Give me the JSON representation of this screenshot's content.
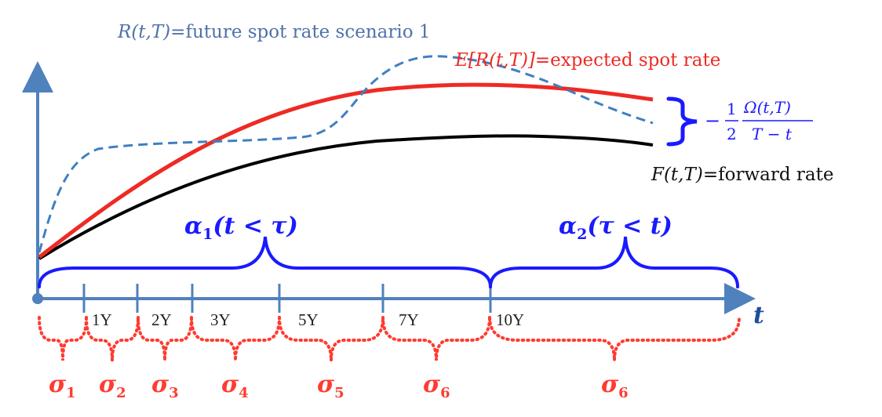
{
  "labels": {
    "future_spot_var": "R(t,T)",
    "future_spot_text": "=future spot rate scenario 1",
    "expected_var": "E[R(t,T)]",
    "expected_text": "=expected spot rate",
    "forward_var": "F(t,T)",
    "forward_text": "=forward rate",
    "convexity_sign": "−",
    "convexity_coef_num": "1",
    "convexity_coef_den": "2",
    "convexity_num": "Ω(t,T)",
    "convexity_den": "T − t",
    "alpha1_base": "α",
    "alpha1_sub": "1",
    "alpha1_cond": "(t < τ)",
    "alpha2_base": "α",
    "alpha2_sub": "2",
    "alpha2_cond": "(τ < t)",
    "t_axis": "t"
  },
  "ticks": [
    "1Y",
    "2Y",
    "3Y",
    "5Y",
    "7Y",
    "10Y"
  ],
  "sigmas": [
    {
      "base": "σ",
      "sub": "1"
    },
    {
      "base": "σ",
      "sub": "2"
    },
    {
      "base": "σ",
      "sub": "3"
    },
    {
      "base": "σ",
      "sub": "4"
    },
    {
      "base": "σ",
      "sub": "5"
    },
    {
      "base": "σ",
      "sub": "6"
    },
    {
      "base": "σ",
      "sub": "6"
    }
  ],
  "colors": {
    "axis": "#4f81bd",
    "future_spot": "#3f7fc2",
    "expected": "#ee2a24",
    "forward": "#000000",
    "brace": "#1a1aff",
    "sigma": "#ff3b30",
    "future_label": "#4f72a8",
    "expected_label": "#ee2a24",
    "alpha": "#1a1aff"
  }
}
